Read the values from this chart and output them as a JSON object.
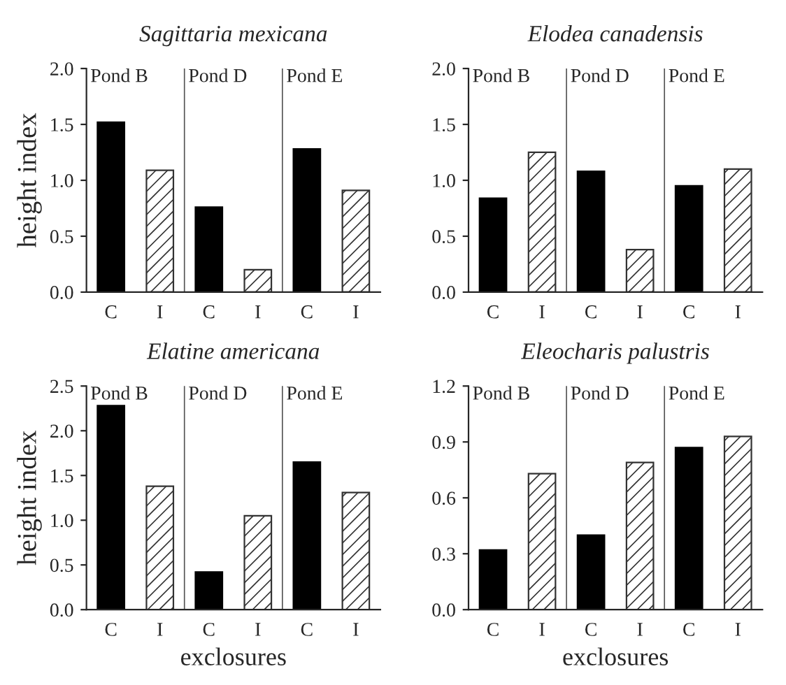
{
  "chart_data": [
    {
      "type": "bar",
      "title": "Sagittaria mexicana",
      "ylabel": "height index",
      "categories": [
        "C",
        "I",
        "C",
        "I",
        "C",
        "I"
      ],
      "values": [
        1.52,
        1.09,
        0.76,
        0.2,
        1.28,
        0.91
      ],
      "colors": [
        "#000000",
        "#333333",
        "#000000",
        "#333333",
        "#000000",
        "#333333"
      ],
      "ylim": [
        0,
        2.0
      ],
      "yticks": [
        {
          "value": 0,
          "label": "0.0"
        },
        {
          "value": 0.5,
          "label": "0.5"
        },
        {
          "value": 1.0,
          "label": "1.0"
        },
        {
          "value": 1.5,
          "label": "1.5"
        },
        {
          "value": 2.0,
          "label": "2.0"
        }
      ],
      "annotations": [
        "Pond B",
        "Pond D",
        "Pond E"
      ]
    },
    {
      "type": "bar",
      "title": "Elodea canadensis",
      "categories": [
        "C",
        "I",
        "C",
        "I",
        "C",
        "I"
      ],
      "values": [
        0.84,
        1.25,
        1.08,
        0.38,
        0.95,
        1.1
      ],
      "colors": [
        "#000000",
        "#333333",
        "#000000",
        "#333333",
        "#000000",
        "#333333"
      ],
      "ylim": [
        0,
        2.0
      ],
      "yticks": [
        {
          "value": 0,
          "label": "0.0"
        },
        {
          "value": 0.5,
          "label": "0.5"
        },
        {
          "value": 1.0,
          "label": "1.0"
        },
        {
          "value": 1.5,
          "label": "1.5"
        },
        {
          "value": 2.0,
          "label": "2.0"
        }
      ],
      "annotations": [
        "Pond B",
        "Pond D",
        "Pond E"
      ]
    },
    {
      "type": "bar",
      "title": "Elatine americana",
      "ylabel": "height index",
      "xlabel": "exclosures",
      "categories": [
        "C",
        "I",
        "C",
        "I",
        "C",
        "I"
      ],
      "values": [
        2.28,
        1.38,
        0.42,
        1.05,
        1.65,
        1.31
      ],
      "colors": [
        "#000000",
        "#333333",
        "#000000",
        "#333333",
        "#000000",
        "#333333"
      ],
      "ylim": [
        0,
        2.5
      ],
      "yticks": [
        {
          "value": 0,
          "label": "0.0"
        },
        {
          "value": 0.5,
          "label": "0.5"
        },
        {
          "value": 1.0,
          "label": "1.0"
        },
        {
          "value": 1.5,
          "label": "1.5"
        },
        {
          "value": 2.0,
          "label": "2.0"
        },
        {
          "value": 2.5,
          "label": "2.5"
        }
      ],
      "annotations": [
        "Pond B",
        "Pond D",
        "Pond E"
      ]
    },
    {
      "type": "bar",
      "title": "Eleocharis palustris",
      "xlabel": "exclosures",
      "categories": [
        "C",
        "I",
        "C",
        "I",
        "C",
        "I"
      ],
      "values": [
        0.32,
        0.73,
        0.4,
        0.79,
        0.87,
        0.93
      ],
      "colors": [
        "#000000",
        "#333333",
        "#000000",
        "#333333",
        "#000000",
        "#333333"
      ],
      "ylim": [
        0,
        1.2
      ],
      "yticks": [
        {
          "value": 0,
          "label": "0.0"
        },
        {
          "value": 0.3,
          "label": "0.3"
        },
        {
          "value": 0.6,
          "label": "0.6"
        },
        {
          "value": 0.9,
          "label": "0.9"
        },
        {
          "value": 1.2,
          "label": "1.2"
        }
      ],
      "annotations": [
        "Pond B",
        "Pond D",
        "Pond E"
      ]
    }
  ]
}
